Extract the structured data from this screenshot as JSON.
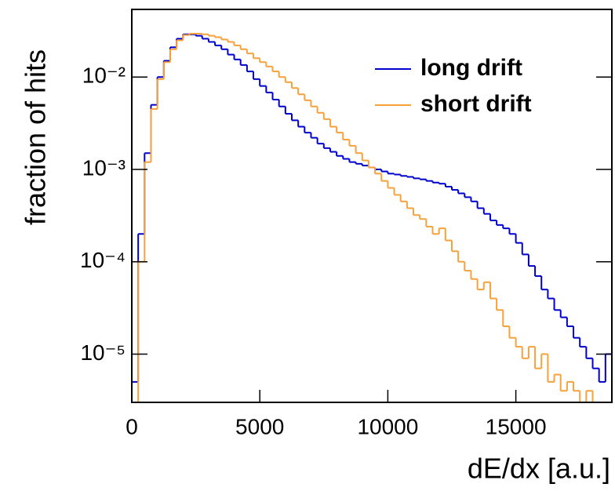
{
  "chart_data": {
    "type": "histogram",
    "y_label": "fraction of hits",
    "x_label": "dE/dx [a.u.]",
    "bins": [
      0,
      250,
      500,
      750,
      1000,
      1250,
      1500,
      1750,
      2000,
      2250,
      2500,
      2750,
      3000,
      3250,
      3500,
      3750,
      4000,
      4250,
      4500,
      4750,
      5000,
      5250,
      5500,
      5750,
      6000,
      6250,
      6500,
      6750,
      7000,
      7250,
      7500,
      7750,
      8000,
      8250,
      8500,
      8750,
      9000,
      9250,
      9500,
      9750,
      10000,
      10250,
      10500,
      10750,
      11000,
      11250,
      11500,
      11750,
      12000,
      12250,
      12500,
      12750,
      13000,
      13250,
      13500,
      13750,
      14000,
      14250,
      14500,
      14750,
      15000,
      15250,
      15500,
      15750,
      16000,
      16250,
      16500,
      16750,
      17000,
      17250,
      17500,
      17750,
      18000,
      18250,
      18500,
      18750
    ],
    "series": [
      {
        "name": "long drift",
        "color": "#0000cc",
        "values": [
          5e-06,
          0.0002,
          0.0015,
          0.005,
          0.01,
          0.015,
          0.021,
          0.026,
          0.029,
          0.029,
          0.028,
          0.026,
          0.024,
          0.022,
          0.02,
          0.0175,
          0.0155,
          0.0135,
          0.0115,
          0.0095,
          0.008,
          0.0068,
          0.0057,
          0.0048,
          0.004,
          0.0034,
          0.0029,
          0.0025,
          0.0022,
          0.0019,
          0.0017,
          0.00155,
          0.0014,
          0.0013,
          0.0012,
          0.00115,
          0.0011,
          0.00105,
          0.001,
          0.00095,
          0.0009,
          0.00088,
          0.00085,
          0.00083,
          0.0008,
          0.00078,
          0.00075,
          0.00072,
          0.0007,
          0.00065,
          0.0006,
          0.00055,
          0.0005,
          0.00045,
          0.00038,
          0.00033,
          0.00028,
          0.00025,
          0.00023,
          0.0002,
          0.00016,
          0.00012,
          9e-05,
          7e-05,
          5e-05,
          4e-05,
          3e-05,
          2.5e-05,
          2e-05,
          1.5e-05,
          1.2e-05,
          9e-06,
          7e-06,
          5e-06,
          1e-05
        ]
      },
      {
        "name": "short drift",
        "color": "#f7a13b",
        "values": [
          3e-06,
          0.0001,
          0.0012,
          0.0045,
          0.0095,
          0.0145,
          0.02,
          0.025,
          0.0285,
          0.0295,
          0.0295,
          0.029,
          0.028,
          0.027,
          0.0255,
          0.024,
          0.022,
          0.02,
          0.018,
          0.016,
          0.0145,
          0.013,
          0.0115,
          0.01,
          0.0088,
          0.0076,
          0.0065,
          0.0056,
          0.0048,
          0.0041,
          0.0035,
          0.0029,
          0.0025,
          0.0021,
          0.0018,
          0.0015,
          0.00125,
          0.00105,
          0.0009,
          0.00075,
          0.00063,
          0.00053,
          0.00045,
          0.00038,
          0.00032,
          0.00029,
          0.00024,
          0.0002,
          0.00023,
          0.00017,
          0.00013,
          0.0001,
          8e-05,
          6.5e-05,
          5e-05,
          6e-05,
          4e-05,
          3e-05,
          2e-05,
          1.5e-05,
          1.2e-05,
          9e-06,
          1.2e-05,
          7e-06,
          1e-05,
          5e-06,
          6e-06,
          4e-06,
          5e-06,
          4e-06,
          3e-06,
          4e-06,
          2e-06,
          3e-06,
          2e-06
        ]
      }
    ],
    "xlim": [
      0,
      18750
    ],
    "xticks": [
      0,
      5000,
      10000,
      15000
    ],
    "ylim": [
      3e-06,
      0.054
    ],
    "log_y": true,
    "yticks": [
      {
        "value": 0.01,
        "label": "10⁻²"
      },
      {
        "value": 0.001,
        "label": "10⁻³"
      },
      {
        "value": 0.0001,
        "label": "10⁻⁴"
      },
      {
        "value": 1e-05,
        "label": "10⁻⁵"
      }
    ],
    "legend": "top-right"
  }
}
